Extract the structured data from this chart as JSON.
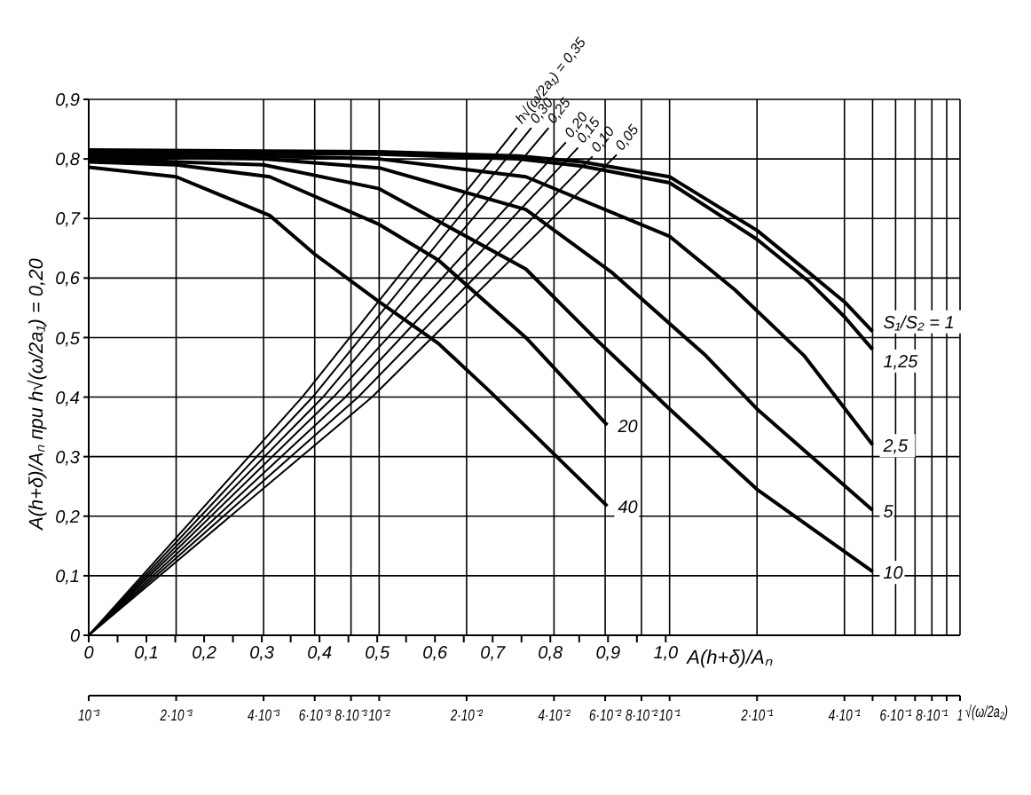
{
  "chart_data": {
    "type": "line",
    "ylabel": "A(h+δ)/Aₙ при h√(ω/2a₁) = 0,20",
    "xlabel": "√(ω/2a₂)",
    "x2label": "A(h+δ)/Aₙ",
    "log": "x",
    "grid": true,
    "legend": false,
    "marker": "none",
    "line_style": "solid",
    "xlim": [
      0.001,
      1
    ],
    "xticks": [
      {
        "value": 0.001,
        "label": "10⁻³"
      },
      {
        "value": 0.002,
        "label": "2·10⁻³"
      },
      {
        "value": 0.004,
        "label": "4·10⁻³"
      },
      {
        "value": 0.006,
        "label": "6·10⁻³"
      },
      {
        "value": 0.008,
        "label": "8·10⁻³"
      },
      {
        "value": 0.01,
        "label": "10⁻²"
      },
      {
        "value": 0.02,
        "label": "2·10⁻²"
      },
      {
        "value": 0.04,
        "label": "4·10⁻²"
      },
      {
        "value": 0.06,
        "label": "6·10⁻²"
      },
      {
        "value": 0.08,
        "label": "8·10⁻²"
      },
      {
        "value": 0.1,
        "label": "10⁻¹"
      },
      {
        "value": 0.2,
        "label": "2·10⁻¹"
      },
      {
        "value": 0.4,
        "label": "4·10⁻¹"
      },
      {
        "value": 0.5,
        "label": null
      },
      {
        "value": 0.6,
        "label": "6·10⁻¹"
      },
      {
        "value": 0.7,
        "label": null
      },
      {
        "value": 0.8,
        "label": "8·10⁻¹"
      },
      {
        "value": 0.9,
        "label": null
      },
      1
    ],
    "ylim": [
      0,
      0.9
    ],
    "yticks": [
      0,
      {
        "value": 0.1,
        "label": "0,1"
      },
      {
        "value": 0.2,
        "label": "0,2"
      },
      {
        "value": 0.3,
        "label": "0,3"
      },
      {
        "value": 0.4,
        "label": "0,4"
      },
      {
        "value": 0.5,
        "label": "0,5"
      },
      {
        "value": 0.6,
        "label": "0,6"
      },
      {
        "value": 0.7,
        "label": "0,7"
      },
      {
        "value": 0.8,
        "label": "0,8"
      },
      {
        "value": 0.9,
        "label": "0,9"
      }
    ],
    "x2lim": [
      0,
      1.51
    ],
    "x2ticks": [
      0,
      {
        "value": 0.05,
        "label": null
      },
      {
        "value": 0.1,
        "label": "0,1"
      },
      {
        "value": 0.15,
        "label": null
      },
      {
        "value": 0.2,
        "label": "0,2"
      },
      {
        "value": 0.25,
        "label": null
      },
      {
        "value": 0.3,
        "label": "0,3"
      },
      {
        "value": 0.35,
        "label": null
      },
      {
        "value": 0.4,
        "label": "0,4"
      },
      {
        "value": 0.45,
        "label": null
      },
      {
        "value": 0.5,
        "label": "0,5"
      },
      {
        "value": 0.55,
        "label": null
      },
      {
        "value": 0.6,
        "label": "0,6"
      },
      {
        "value": 0.65,
        "label": null
      },
      {
        "value": 0.7,
        "label": "0,7"
      },
      {
        "value": 0.75,
        "label": null
      },
      {
        "value": 0.8,
        "label": "0,8"
      },
      {
        "value": 0.85,
        "label": null
      },
      {
        "value": 0.9,
        "label": "0,9"
      },
      {
        "value": 0.95,
        "label": null
      },
      {
        "value": 1.0,
        "label": "1,0"
      }
    ],
    "series": [
      {
        "name": "S₁/S₂ = 1",
        "color": "#000000",
        "x": [
          0.001,
          0.01,
          0.03,
          0.05,
          0.1,
          0.2,
          0.3,
          0.4,
          0.5
        ],
        "values": [
          0.815,
          0.812,
          0.805,
          0.795,
          0.77,
          0.68,
          0.61,
          0.56,
          0.51
        ]
      },
      {
        "name": "1,25",
        "color": "#000000",
        "x": [
          0.001,
          0.01,
          0.03,
          0.05,
          0.1,
          0.2,
          0.3,
          0.4,
          0.5
        ],
        "values": [
          0.812,
          0.808,
          0.8,
          0.788,
          0.76,
          0.665,
          0.595,
          0.535,
          0.48
        ]
      },
      {
        "name": "2,5",
        "color": "#000000",
        "x": [
          0.001,
          0.004,
          0.01,
          0.032,
          0.1,
          0.168,
          0.29,
          0.5
        ],
        "values": [
          0.808,
          0.805,
          0.8,
          0.77,
          0.67,
          0.58,
          0.47,
          0.32
        ]
      },
      {
        "name": "5",
        "color": "#000000",
        "x": [
          0.001,
          0.004,
          0.01,
          0.032,
          0.063,
          0.133,
          0.2,
          0.5
        ],
        "values": [
          0.804,
          0.8,
          0.785,
          0.715,
          0.61,
          0.47,
          0.38,
          0.21
        ]
      },
      {
        "name": "10",
        "color": "#000000",
        "x": [
          0.001,
          0.004,
          0.01,
          0.032,
          0.055,
          0.1,
          0.2,
          0.5
        ],
        "values": [
          0.8,
          0.79,
          0.75,
          0.615,
          0.5,
          0.38,
          0.245,
          0.107
        ]
      },
      {
        "name": "20",
        "color": "#000000",
        "x": [
          0.001,
          0.002,
          0.0042,
          0.01,
          0.016,
          0.032,
          0.061
        ],
        "values": [
          0.795,
          0.79,
          0.77,
          0.69,
          0.63,
          0.5,
          0.353
        ]
      },
      {
        "name": "40",
        "color": "#000000",
        "x": [
          0.001,
          0.002,
          0.0042,
          0.006,
          0.01,
          0.016,
          0.024,
          0.061
        ],
        "values": [
          0.786,
          0.77,
          0.705,
          0.64,
          0.56,
          0.49,
          0.41,
          0.217
        ]
      },
      {
        "name": "h√(ω/2a₁) = 0,35",
        "color": "#000000",
        "axis": "x2",
        "x": [
          0,
          0.37,
          0.742
        ],
        "values": [
          0,
          0.4,
          0.852
        ]
      },
      {
        "name": "0,30",
        "color": "#000000",
        "axis": "x2",
        "x": [
          0,
          0.388,
          0.767
        ],
        "values": [
          0,
          0.4,
          0.852
        ]
      },
      {
        "name": "0,25",
        "color": "#000000",
        "axis": "x2",
        "x": [
          0,
          0.406,
          0.797
        ],
        "values": [
          0,
          0.4,
          0.852
        ]
      },
      {
        "name": "0,20",
        "color": "#000000",
        "axis": "x2",
        "x": [
          0,
          0.424,
          0.827
        ],
        "values": [
          0,
          0.4,
          0.828
        ]
      },
      {
        "name": "0,15",
        "color": "#000000",
        "axis": "x2",
        "x": [
          0,
          0.445,
          0.848
        ],
        "values": [
          0,
          0.4,
          0.819
        ]
      },
      {
        "name": "0,10",
        "color": "#000000",
        "axis": "x2",
        "x": [
          0,
          0.467,
          0.873
        ],
        "values": [
          0,
          0.4,
          0.804
        ]
      },
      {
        "name": "0,05",
        "color": "#000000",
        "axis": "x2",
        "x": [
          0,
          0.491,
          0.915
        ],
        "values": [
          0,
          0.4,
          0.807
        ]
      }
    ]
  }
}
